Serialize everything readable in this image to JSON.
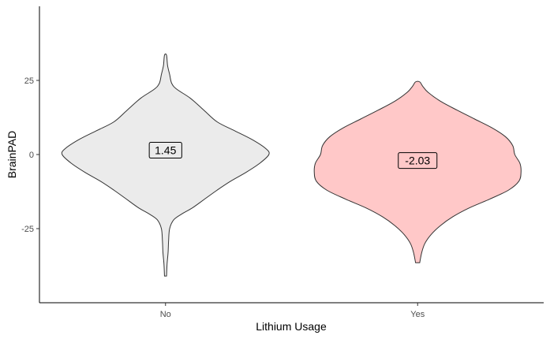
{
  "chart_data": {
    "type": "violin",
    "title": "",
    "xlabel": "Lithium Usage",
    "ylabel": "BrainPAD",
    "ylim": [
      -50,
      50
    ],
    "yticks": [
      -25,
      0,
      25
    ],
    "grid": false,
    "legend": "none",
    "categories": [
      "No",
      "Yes"
    ],
    "series": [
      {
        "category": "No",
        "fill": "#ebebeb",
        "mean_label": "1.45",
        "mean": 1.45,
        "range": [
          -41,
          33.5
        ],
        "density_profile": [
          [
            -41,
            0.01
          ],
          [
            -37,
            0.015
          ],
          [
            -33,
            0.025
          ],
          [
            -29,
            0.03
          ],
          [
            -25,
            0.04
          ],
          [
            -22,
            0.08
          ],
          [
            -20,
            0.16
          ],
          [
            -18,
            0.26
          ],
          [
            -15,
            0.38
          ],
          [
            -12,
            0.5
          ],
          [
            -9,
            0.63
          ],
          [
            -6,
            0.78
          ],
          [
            -3,
            0.91
          ],
          [
            0,
            1.0
          ],
          [
            2,
            0.97
          ],
          [
            5,
            0.84
          ],
          [
            8,
            0.67
          ],
          [
            11,
            0.5
          ],
          [
            15,
            0.37
          ],
          [
            19,
            0.24
          ],
          [
            22,
            0.11
          ],
          [
            24,
            0.06
          ],
          [
            27,
            0.04
          ],
          [
            30,
            0.02
          ],
          [
            33.5,
            0.01
          ]
        ]
      },
      {
        "category": "Yes",
        "fill": "#ffc8c8",
        "mean_label": "-2.03",
        "mean": -2.03,
        "range": [
          -36.5,
          24.5
        ],
        "density_profile": [
          [
            -36.5,
            0.02
          ],
          [
            -33,
            0.04
          ],
          [
            -30,
            0.07
          ],
          [
            -27,
            0.13
          ],
          [
            -24,
            0.22
          ],
          [
            -21,
            0.34
          ],
          [
            -18,
            0.5
          ],
          [
            -15,
            0.7
          ],
          [
            -12,
            0.88
          ],
          [
            -9,
            0.98
          ],
          [
            -6,
            1.0
          ],
          [
            -3,
            0.99
          ],
          [
            0,
            0.94
          ],
          [
            3,
            0.92
          ],
          [
            6,
            0.85
          ],
          [
            9,
            0.72
          ],
          [
            12,
            0.55
          ],
          [
            15,
            0.38
          ],
          [
            18,
            0.22
          ],
          [
            21,
            0.1
          ],
          [
            23,
            0.05
          ],
          [
            24.5,
            0.02
          ]
        ]
      }
    ]
  }
}
